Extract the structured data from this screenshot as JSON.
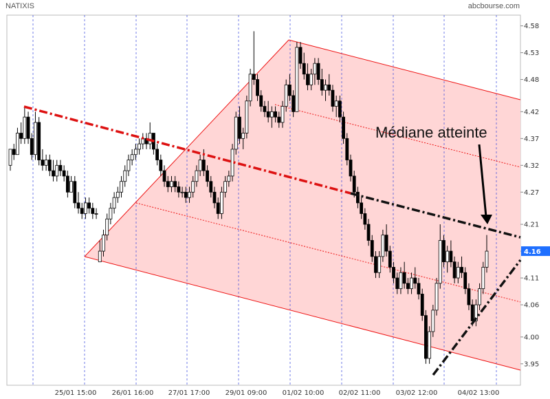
{
  "header": {
    "ticker": "NATIXIS",
    "source": "abcbourse.com"
  },
  "chart_data": {
    "type": "candlestick",
    "title": "NATIXIS",
    "y_ticks": [
      "4.58",
      "4.53",
      "4.48",
      "4.42",
      "4.37",
      "4.32",
      "4.27",
      "4.21",
      "4.16",
      "4.11",
      "4.06",
      "4.00",
      "3.95"
    ],
    "x_ticks": [
      "25/01 15:00",
      "26/01 16:00",
      "27/01 17:00",
      "29/01 09:00",
      "01/02 10:00",
      "02/02 11:00",
      "03/02 12:00",
      "04/02 13:00"
    ],
    "ylim": [
      3.91,
      4.6
    ],
    "last_value": "4.16",
    "annotation": "Médiane atteinte",
    "colors": {
      "channel_fill": "#ffd6d6",
      "channel_line": "#ee1111",
      "median_line": "#dd1111",
      "candle_up": "#ffffff",
      "candle_down": "#000000",
      "last_label_bg": "#1e6fff",
      "session_separator": "#3344dd"
    },
    "series": [
      {
        "values": [
          [
            4.32,
            4.34,
            4.31,
            4.35
          ],
          [
            4.35,
            4.36,
            4.33,
            4.34
          ],
          [
            4.34,
            4.39,
            4.34,
            4.38
          ],
          [
            4.38,
            4.4,
            4.36,
            4.37
          ],
          [
            4.37,
            4.43,
            4.36,
            4.41
          ],
          [
            4.41,
            4.42,
            4.36,
            4.37
          ],
          [
            4.37,
            4.38,
            4.33,
            4.34
          ],
          [
            4.34,
            4.42,
            4.33,
            4.4
          ],
          [
            4.4,
            4.41,
            4.32,
            4.33
          ],
          [
            4.33,
            4.35,
            4.31,
            4.32
          ],
          [
            4.32,
            4.34,
            4.31,
            4.33
          ],
          [
            4.33,
            4.34,
            4.3,
            4.31
          ],
          [
            4.31,
            4.33,
            4.29,
            4.3
          ],
          [
            4.3,
            4.33,
            4.29,
            4.32
          ],
          [
            4.32,
            4.33,
            4.3,
            4.31
          ],
          [
            4.31,
            4.32,
            4.29,
            4.3
          ],
          [
            4.3,
            4.31,
            4.26,
            4.27
          ],
          [
            4.27,
            4.3,
            4.27,
            4.29
          ],
          [
            4.29,
            4.3,
            4.24,
            4.25
          ],
          [
            4.25,
            4.27,
            4.23,
            4.24
          ],
          [
            4.24,
            4.25,
            4.22,
            4.23
          ],
          [
            4.23,
            4.26,
            4.22,
            4.25
          ],
          [
            4.25,
            4.26,
            4.23,
            4.24
          ],
          [
            4.24,
            4.25,
            4.22,
            4.23
          ],
          [
            4.23,
            4.24,
            4.22,
            4.23
          ],
          [
            4.14,
            4.18,
            4.14,
            4.16
          ],
          [
            4.16,
            4.2,
            4.15,
            4.19
          ],
          [
            4.19,
            4.23,
            4.18,
            4.22
          ],
          [
            4.22,
            4.25,
            4.21,
            4.24
          ],
          [
            4.24,
            4.27,
            4.23,
            4.26
          ],
          [
            4.26,
            4.28,
            4.25,
            4.27
          ],
          [
            4.27,
            4.3,
            4.26,
            4.29
          ],
          [
            4.29,
            4.32,
            4.28,
            4.31
          ],
          [
            4.31,
            4.34,
            4.3,
            4.33
          ],
          [
            4.33,
            4.35,
            4.32,
            4.34
          ],
          [
            4.34,
            4.36,
            4.33,
            4.35
          ],
          [
            4.35,
            4.37,
            4.34,
            4.36
          ],
          [
            4.36,
            4.38,
            4.35,
            4.37
          ],
          [
            4.37,
            4.38,
            4.35,
            4.36
          ],
          [
            4.36,
            4.4,
            4.35,
            4.38
          ],
          [
            4.38,
            4.38,
            4.34,
            4.35
          ],
          [
            4.35,
            4.36,
            4.32,
            4.33
          ],
          [
            4.33,
            4.34,
            4.3,
            4.31
          ],
          [
            4.31,
            4.32,
            4.28,
            4.29
          ],
          [
            4.29,
            4.3,
            4.27,
            4.28
          ],
          [
            4.28,
            4.3,
            4.27,
            4.29
          ],
          [
            4.29,
            4.3,
            4.27,
            4.28
          ],
          [
            4.28,
            4.29,
            4.26,
            4.27
          ],
          [
            4.27,
            4.28,
            4.26,
            4.27
          ],
          [
            4.27,
            4.28,
            4.25,
            4.26
          ],
          [
            4.26,
            4.28,
            4.25,
            4.27
          ],
          [
            4.27,
            4.3,
            4.26,
            4.29
          ],
          [
            4.29,
            4.32,
            4.28,
            4.31
          ],
          [
            4.31,
            4.34,
            4.3,
            4.33
          ],
          [
            4.33,
            4.35,
            4.3,
            4.31
          ],
          [
            4.31,
            4.32,
            4.28,
            4.29
          ],
          [
            4.29,
            4.3,
            4.26,
            4.27
          ],
          [
            4.27,
            4.28,
            4.24,
            4.25
          ],
          [
            4.25,
            4.26,
            4.22,
            4.23
          ],
          [
            4.23,
            4.28,
            4.22,
            4.27
          ],
          [
            4.27,
            4.3,
            4.26,
            4.29
          ],
          [
            4.29,
            4.31,
            4.28,
            4.3
          ],
          [
            4.3,
            4.36,
            4.29,
            4.35
          ],
          [
            4.35,
            4.42,
            4.34,
            4.41
          ],
          [
            4.41,
            4.43,
            4.36,
            4.37
          ],
          [
            4.37,
            4.39,
            4.35,
            4.38
          ],
          [
            4.38,
            4.45,
            4.37,
            4.44
          ],
          [
            4.44,
            4.5,
            4.43,
            4.49
          ],
          [
            4.49,
            4.57,
            4.47,
            4.48
          ],
          [
            4.48,
            4.49,
            4.44,
            4.45
          ],
          [
            4.45,
            4.46,
            4.42,
            4.43
          ],
          [
            4.43,
            4.44,
            4.41,
            4.42
          ],
          [
            4.42,
            4.44,
            4.4,
            4.41
          ],
          [
            4.41,
            4.43,
            4.39,
            4.42
          ],
          [
            4.42,
            4.43,
            4.4,
            4.41
          ],
          [
            4.41,
            4.42,
            4.39,
            4.4
          ],
          [
            4.4,
            4.44,
            4.39,
            4.43
          ],
          [
            4.43,
            4.48,
            4.42,
            4.47
          ],
          [
            4.47,
            4.49,
            4.44,
            4.45
          ],
          [
            4.45,
            4.46,
            4.41,
            4.42
          ],
          [
            4.42,
            4.55,
            4.42,
            4.54
          ],
          [
            4.54,
            4.55,
            4.5,
            4.51
          ],
          [
            4.51,
            4.53,
            4.48,
            4.49
          ],
          [
            4.49,
            4.51,
            4.46,
            4.47
          ],
          [
            4.47,
            4.5,
            4.46,
            4.49
          ],
          [
            4.49,
            4.52,
            4.47,
            4.51
          ],
          [
            4.51,
            4.52,
            4.47,
            4.48
          ],
          [
            4.48,
            4.5,
            4.45,
            4.46
          ],
          [
            4.46,
            4.48,
            4.44,
            4.47
          ],
          [
            4.47,
            4.49,
            4.45,
            4.46
          ],
          [
            4.46,
            4.47,
            4.42,
            4.43
          ],
          [
            4.43,
            4.45,
            4.41,
            4.44
          ],
          [
            4.44,
            4.45,
            4.4,
            4.41
          ],
          [
            4.41,
            4.42,
            4.36,
            4.37
          ],
          [
            4.37,
            4.38,
            4.32,
            4.33
          ],
          [
            4.33,
            4.34,
            4.29,
            4.3
          ],
          [
            4.3,
            4.31,
            4.26,
            4.27
          ],
          [
            4.27,
            4.28,
            4.24,
            4.25
          ],
          [
            4.25,
            4.26,
            4.22,
            4.23
          ],
          [
            4.23,
            4.24,
            4.2,
            4.21
          ],
          [
            4.21,
            4.22,
            4.17,
            4.18
          ],
          [
            4.18,
            4.19,
            4.14,
            4.15
          ],
          [
            4.15,
            4.16,
            4.11,
            4.12
          ],
          [
            4.12,
            4.16,
            4.11,
            4.15
          ],
          [
            4.15,
            4.2,
            4.14,
            4.19
          ],
          [
            4.19,
            4.21,
            4.15,
            4.16
          ],
          [
            4.16,
            4.17,
            4.12,
            4.13
          ],
          [
            4.13,
            4.14,
            4.1,
            4.11
          ],
          [
            4.11,
            4.12,
            4.08,
            4.09
          ],
          [
            4.09,
            4.13,
            4.08,
            4.12
          ],
          [
            4.12,
            4.14,
            4.09,
            4.1
          ],
          [
            4.1,
            4.11,
            4.08,
            4.09
          ],
          [
            4.09,
            4.12,
            4.08,
            4.11
          ],
          [
            4.11,
            4.13,
            4.09,
            4.1
          ],
          [
            4.1,
            4.11,
            4.07,
            4.08
          ],
          [
            4.08,
            4.09,
            4.03,
            4.04
          ],
          [
            4.04,
            4.05,
            3.95,
            3.96
          ],
          [
            3.96,
            4.02,
            3.95,
            4.01
          ],
          [
            4.01,
            4.06,
            4.0,
            4.05
          ],
          [
            4.05,
            4.11,
            4.04,
            4.1
          ],
          [
            4.1,
            4.21,
            4.09,
            4.18
          ],
          [
            4.18,
            4.19,
            4.13,
            4.14
          ],
          [
            4.14,
            4.17,
            4.12,
            4.16
          ],
          [
            4.16,
            4.18,
            4.13,
            4.14
          ],
          [
            4.14,
            4.15,
            4.1,
            4.11
          ],
          [
            4.11,
            4.14,
            4.1,
            4.13
          ],
          [
            4.13,
            4.15,
            4.11,
            4.12
          ],
          [
            4.12,
            4.13,
            4.08,
            4.09
          ],
          [
            4.09,
            4.1,
            4.05,
            4.06
          ],
          [
            4.06,
            4.07,
            4.02,
            4.03
          ],
          [
            4.03,
            4.07,
            4.02,
            4.06
          ],
          [
            4.06,
            4.1,
            4.05,
            4.09
          ],
          [
            4.09,
            4.14,
            4.08,
            4.13
          ],
          [
            4.13,
            4.19,
            4.12,
            4.16
          ]
        ]
      }
    ]
  }
}
